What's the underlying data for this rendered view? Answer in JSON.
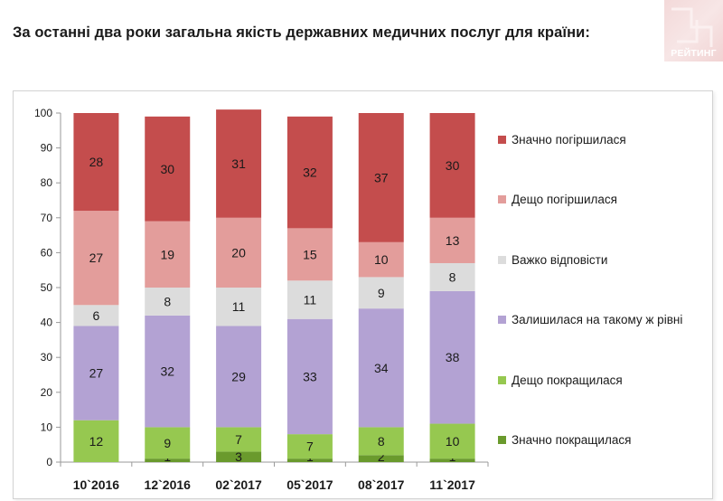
{
  "header": {
    "title": "За останні два роки загальна якість державних медичних послуг для країни:"
  },
  "logo": {
    "text": "РЕЙТИНГ"
  },
  "chart_data": {
    "type": "bar",
    "stacked": true,
    "categories": [
      "10`2016",
      "12`2016",
      "02`2017",
      "05`2017",
      "08`2017",
      "11`2017"
    ],
    "ylim": [
      0,
      100
    ],
    "yticks": [
      0,
      10,
      20,
      30,
      40,
      50,
      60,
      70,
      80,
      90,
      100
    ],
    "grid": false,
    "legend_position": "right",
    "series": [
      {
        "name": "Значно покращилася",
        "color": "#6a9a2d",
        "values": [
          0,
          1,
          3,
          1,
          2,
          1
        ],
        "labels": [
          "",
          "1",
          "3",
          "1",
          "2",
          "1"
        ]
      },
      {
        "name": "Дещо покращилася",
        "color": "#96c850",
        "values": [
          12,
          9,
          7,
          7,
          8,
          10
        ],
        "labels": [
          "12",
          "9",
          "7",
          "7",
          "8",
          "10"
        ]
      },
      {
        "name": "Залишилася на такому ж рівні",
        "color": "#b3a2d3",
        "values": [
          27,
          32,
          29,
          33,
          34,
          38
        ],
        "labels": [
          "27",
          "32",
          "29",
          "33",
          "34",
          "38"
        ]
      },
      {
        "name": "Важко відповісти",
        "color": "#dcdcdc",
        "values": [
          6,
          8,
          11,
          11,
          9,
          8
        ],
        "labels": [
          "6",
          "8",
          "11",
          "11",
          "9",
          "8"
        ]
      },
      {
        "name": "Дещо погіршилася",
        "color": "#e39d9b",
        "values": [
          27,
          19,
          20,
          15,
          10,
          13
        ],
        "labels": [
          "27",
          "19",
          "20",
          "15",
          "10",
          "13"
        ]
      },
      {
        "name": "Значно погіршилася",
        "color": "#c44d4d",
        "values": [
          28,
          30,
          31,
          32,
          37,
          30
        ],
        "labels": [
          "28",
          "30",
          "31",
          "32",
          "37",
          "30"
        ]
      }
    ]
  }
}
